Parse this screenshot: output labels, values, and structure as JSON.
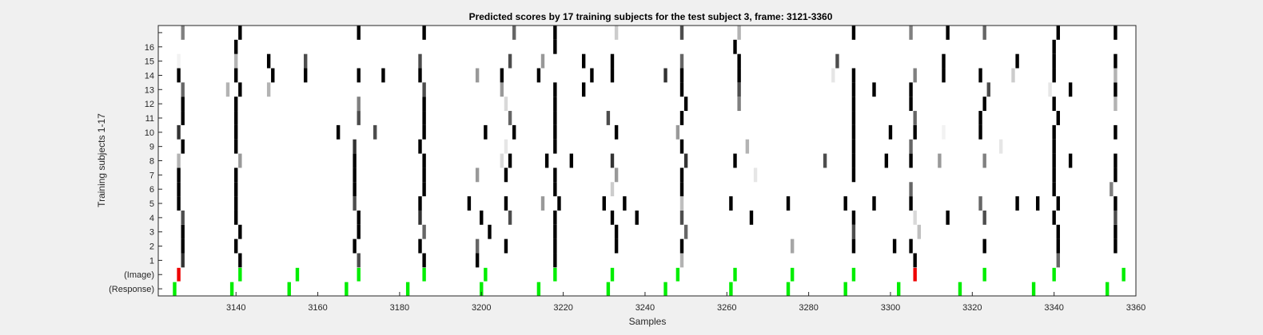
{
  "chart_data": {
    "type": "heatmap",
    "title": "Predicted scores by 17 training subjects for the test subject 3, frame: 3121-3360",
    "xlabel": "Samples",
    "ylabel": "Training subjects 1-17",
    "xlim": [
      3121,
      3360
    ],
    "x_ticks": [
      3140,
      3160,
      3180,
      3200,
      3220,
      3240,
      3260,
      3280,
      3300,
      3320,
      3340,
      3360
    ],
    "rows": [
      "(Response)",
      "(Image)",
      "1",
      "2",
      "3",
      "4",
      "5",
      "6",
      "7",
      "8",
      "9",
      "10",
      "11",
      "12",
      "13",
      "14",
      "15",
      "16",
      ""
    ],
    "grid": false,
    "colors": {
      "background": "#f0f0f0",
      "plot": "#ffffff",
      "response": "#00ee00",
      "image_match": "#00ee00",
      "image_mismatch": "#ee0000"
    },
    "value_encoding": "cell darkness = predicted score (0 = white, 1 = black)",
    "response_marks": [
      3125,
      3139,
      3153,
      3167,
      3182,
      3200,
      3214,
      3231,
      3245,
      3261,
      3275,
      3289,
      3302,
      3317,
      3335,
      3353
    ],
    "image_marks": [
      {
        "x": 3126,
        "match": false
      },
      {
        "x": 3141,
        "match": true
      },
      {
        "x": 3155,
        "match": true
      },
      {
        "x": 3170,
        "match": true
      },
      {
        "x": 3186,
        "match": true
      },
      {
        "x": 3201,
        "match": true
      },
      {
        "x": 3218,
        "match": true
      },
      {
        "x": 3232,
        "match": true
      },
      {
        "x": 3248,
        "match": true
      },
      {
        "x": 3262,
        "match": true
      },
      {
        "x": 3276,
        "match": true
      },
      {
        "x": 3291,
        "match": true
      },
      {
        "x": 3306,
        "match": false
      },
      {
        "x": 3323,
        "match": true
      },
      {
        "x": 3340,
        "match": true
      },
      {
        "x": 3357,
        "match": true
      }
    ],
    "subject_cells": {
      "1": [
        [
          3127,
          0.8
        ],
        [
          3141,
          1
        ],
        [
          3170,
          0.7
        ],
        [
          3186,
          1
        ],
        [
          3199,
          1
        ],
        [
          3218,
          1
        ],
        [
          3249,
          0.3
        ],
        [
          3306,
          1
        ],
        [
          3341,
          0.6
        ]
      ],
      "2": [
        [
          3127,
          1
        ],
        [
          3140,
          1
        ],
        [
          3169,
          1
        ],
        [
          3185,
          1
        ],
        [
          3199,
          0.6
        ],
        [
          3206,
          1
        ],
        [
          3218,
          1
        ],
        [
          3233,
          1
        ],
        [
          3249,
          1
        ],
        [
          3276,
          0.35
        ],
        [
          3291,
          1
        ],
        [
          3301,
          1
        ],
        [
          3305,
          1
        ],
        [
          3323,
          1
        ],
        [
          3341,
          1
        ],
        [
          3355,
          1
        ]
      ],
      "3": [
        [
          3127,
          1
        ],
        [
          3141,
          1
        ],
        [
          3170,
          1
        ],
        [
          3186,
          0.6
        ],
        [
          3202,
          1
        ],
        [
          3218,
          1
        ],
        [
          3233,
          1
        ],
        [
          3250,
          0.6
        ],
        [
          3291,
          0.7
        ],
        [
          3307,
          0.25
        ],
        [
          3341,
          1
        ],
        [
          3355,
          1
        ]
      ],
      "4": [
        [
          3127,
          0.7
        ],
        [
          3140,
          1
        ],
        [
          3170,
          1
        ],
        [
          3185,
          0.8
        ],
        [
          3200,
          1
        ],
        [
          3207,
          0.7
        ],
        [
          3218,
          1
        ],
        [
          3232,
          1
        ],
        [
          3238,
          1
        ],
        [
          3249,
          0.7
        ],
        [
          3266,
          1
        ],
        [
          3291,
          1
        ],
        [
          3306,
          0.15
        ],
        [
          3314,
          1
        ],
        [
          3323,
          0.7
        ],
        [
          3340,
          1
        ],
        [
          3355,
          0.7
        ]
      ],
      "5": [
        [
          3126,
          1
        ],
        [
          3140,
          1
        ],
        [
          3169,
          0.7
        ],
        [
          3185,
          1
        ],
        [
          3197,
          1
        ],
        [
          3206,
          1
        ],
        [
          3215,
          0.4
        ],
        [
          3219,
          1
        ],
        [
          3230,
          1
        ],
        [
          3235,
          1
        ],
        [
          3249,
          0.25
        ],
        [
          3261,
          1
        ],
        [
          3275,
          1
        ],
        [
          3289,
          1
        ],
        [
          3296,
          1
        ],
        [
          3305,
          1
        ],
        [
          3322,
          0.6
        ],
        [
          3331,
          1
        ],
        [
          3336,
          1
        ],
        [
          3341,
          1
        ],
        [
          3355,
          1
        ]
      ],
      "6": [
        [
          3126,
          1
        ],
        [
          3140,
          1
        ],
        [
          3169,
          1
        ],
        [
          3186,
          1
        ],
        [
          3218,
          1
        ],
        [
          3232,
          0.2
        ],
        [
          3249,
          1
        ],
        [
          3305,
          0.6
        ],
        [
          3340,
          1
        ],
        [
          3354,
          0.5
        ]
      ],
      "7": [
        [
          3126,
          1
        ],
        [
          3140,
          1
        ],
        [
          3169,
          1
        ],
        [
          3186,
          1
        ],
        [
          3199,
          0.4
        ],
        [
          3206,
          1
        ],
        [
          3218,
          1
        ],
        [
          3233,
          0.4
        ],
        [
          3249,
          1
        ],
        [
          3267,
          0.1
        ],
        [
          3291,
          1
        ],
        [
          3340,
          1
        ],
        [
          3355,
          1
        ]
      ],
      "8": [
        [
          3126,
          0.3
        ],
        [
          3141,
          0.4
        ],
        [
          3169,
          1
        ],
        [
          3186,
          1
        ],
        [
          3205,
          0.15
        ],
        [
          3207,
          1
        ],
        [
          3216,
          1
        ],
        [
          3222,
          1
        ],
        [
          3232,
          0.8
        ],
        [
          3250,
          0.8
        ],
        [
          3262,
          1
        ],
        [
          3284,
          0.7
        ],
        [
          3291,
          1
        ],
        [
          3299,
          1
        ],
        [
          3305,
          1
        ],
        [
          3312,
          0.4
        ],
        [
          3323,
          0.5
        ],
        [
          3340,
          1
        ],
        [
          3344,
          1
        ],
        [
          3355,
          1
        ]
      ],
      "9": [
        [
          3127,
          1
        ],
        [
          3140,
          1
        ],
        [
          3169,
          0.8
        ],
        [
          3185,
          1
        ],
        [
          3206,
          0.1
        ],
        [
          3218,
          1
        ],
        [
          3249,
          1
        ],
        [
          3265,
          0.3
        ],
        [
          3291,
          1
        ],
        [
          3305,
          0.6
        ],
        [
          3327,
          0.1
        ],
        [
          3340,
          1
        ]
      ],
      "10": [
        [
          3126,
          0.8
        ],
        [
          3140,
          1
        ],
        [
          3165,
          1
        ],
        [
          3174,
          0.7
        ],
        [
          3186,
          1
        ],
        [
          3201,
          1
        ],
        [
          3208,
          1
        ],
        [
          3218,
          1
        ],
        [
          3233,
          1
        ],
        [
          3248,
          0.4
        ],
        [
          3291,
          1
        ],
        [
          3300,
          1
        ],
        [
          3306,
          1
        ],
        [
          3313,
          0.05
        ],
        [
          3322,
          1
        ],
        [
          3340,
          1
        ],
        [
          3355,
          1
        ]
      ],
      "11": [
        [
          3127,
          1
        ],
        [
          3140,
          1
        ],
        [
          3170,
          0.7
        ],
        [
          3186,
          1
        ],
        [
          3207,
          0.6
        ],
        [
          3218,
          1
        ],
        [
          3231,
          0.7
        ],
        [
          3249,
          1
        ],
        [
          3291,
          1
        ],
        [
          3306,
          0.6
        ],
        [
          3322,
          1
        ],
        [
          3341,
          1
        ]
      ],
      "12": [
        [
          3127,
          1
        ],
        [
          3140,
          1
        ],
        [
          3170,
          0.5
        ],
        [
          3186,
          1
        ],
        [
          3206,
          0.15
        ],
        [
          3218,
          1
        ],
        [
          3250,
          1
        ],
        [
          3263,
          0.5
        ],
        [
          3291,
          1
        ],
        [
          3305,
          1
        ],
        [
          3323,
          1
        ],
        [
          3340,
          1
        ],
        [
          3355,
          0.3
        ]
      ],
      "13": [
        [
          3127,
          0.6
        ],
        [
          3138,
          0.3
        ],
        [
          3141,
          1
        ],
        [
          3148,
          0.3
        ],
        [
          3186,
          0.7
        ],
        [
          3205,
          0.4
        ],
        [
          3218,
          1
        ],
        [
          3225,
          1
        ],
        [
          3249,
          1
        ],
        [
          3263,
          0.7
        ],
        [
          3291,
          1
        ],
        [
          3296,
          1
        ],
        [
          3305,
          1
        ],
        [
          3324,
          0.7
        ],
        [
          3339,
          0.1
        ],
        [
          3344,
          1
        ],
        [
          3355,
          1
        ]
      ],
      "14": [
        [
          3126,
          1
        ],
        [
          3140,
          1
        ],
        [
          3149,
          1
        ],
        [
          3157,
          1
        ],
        [
          3170,
          1
        ],
        [
          3176,
          1
        ],
        [
          3185,
          1
        ],
        [
          3199,
          0.4
        ],
        [
          3205,
          1
        ],
        [
          3214,
          1
        ],
        [
          3227,
          1
        ],
        [
          3232,
          1
        ],
        [
          3245,
          0.8
        ],
        [
          3249,
          1
        ],
        [
          3263,
          1
        ],
        [
          3286,
          0.1
        ],
        [
          3291,
          1
        ],
        [
          3306,
          0.5
        ],
        [
          3313,
          1
        ],
        [
          3322,
          1
        ],
        [
          3330,
          0.2
        ],
        [
          3340,
          1
        ],
        [
          3355,
          0.3
        ]
      ],
      "15": [
        [
          3126,
          0.05
        ],
        [
          3140,
          0.3
        ],
        [
          3148,
          1
        ],
        [
          3157,
          0.7
        ],
        [
          3185,
          0.7
        ],
        [
          3207,
          0.7
        ],
        [
          3215,
          0.4
        ],
        [
          3225,
          1
        ],
        [
          3232,
          1
        ],
        [
          3249,
          0.6
        ],
        [
          3263,
          1
        ],
        [
          3287,
          0.7
        ],
        [
          3313,
          1
        ],
        [
          3331,
          1
        ],
        [
          3340,
          1
        ],
        [
          3355,
          1
        ]
      ],
      "16": [
        [
          3140,
          1
        ],
        [
          3218,
          1
        ],
        [
          3262,
          1
        ],
        [
          3340,
          1
        ]
      ],
      "17": [
        [
          3127,
          0.5
        ],
        [
          3141,
          1
        ],
        [
          3170,
          1
        ],
        [
          3186,
          1
        ],
        [
          3208,
          0.6
        ],
        [
          3218,
          1
        ],
        [
          3233,
          0.2
        ],
        [
          3249,
          0.7
        ],
        [
          3263,
          0.3
        ],
        [
          3291,
          1
        ],
        [
          3305,
          0.5
        ],
        [
          3314,
          1
        ],
        [
          3323,
          0.6
        ],
        [
          3341,
          1
        ],
        [
          3355,
          1
        ]
      ]
    }
  }
}
